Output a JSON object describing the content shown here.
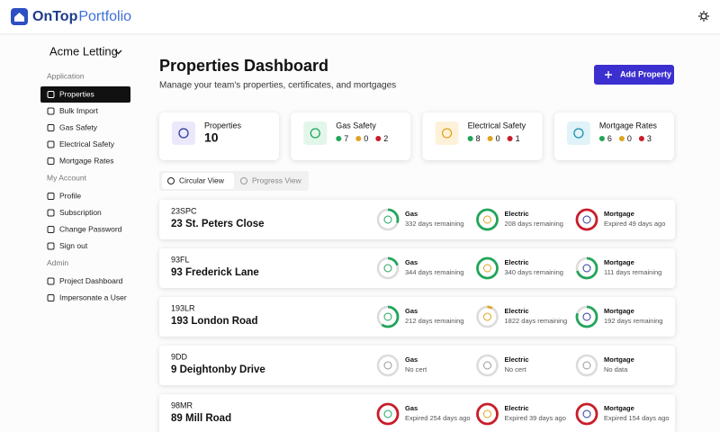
{
  "header": {
    "brand": "OnTop",
    "brand_suffix": "Portfolio"
  },
  "sidebar": {
    "org": "Acme Letting",
    "sections": [
      {
        "title": "Application",
        "items": [
          "Properties",
          "Bulk Import",
          "Gas Safety",
          "Electrical Safety",
          "Mortgage Rates"
        ]
      },
      {
        "title": "My Account",
        "items": [
          "Profile",
          "Subscription",
          "Change Password",
          "Sign out"
        ]
      },
      {
        "title": "Admin",
        "items": [
          "Project Dashboard",
          "Impersonate a User"
        ]
      }
    ]
  },
  "page": {
    "title": "Properties Dashboard",
    "subtitle": "Manage your team's properties, certificates, and mortgages",
    "add_button": "Add Property"
  },
  "stats": [
    {
      "label": "Properties",
      "value": 10
    },
    {
      "label": "Gas Safety",
      "counts": [
        7,
        0,
        2
      ]
    },
    {
      "label": "Electrical Safety",
      "counts": [
        8,
        0,
        1
      ]
    },
    {
      "label": "Mortgage Rates",
      "counts": [
        6,
        0,
        3
      ]
    }
  ],
  "tabs": [
    "Circular View",
    "Progress View"
  ],
  "properties": [
    {
      "code": "23SPC",
      "name": "23 St. Peters Close",
      "certs": [
        {
          "label": "Gas",
          "status": "332 days remaining",
          "progress": 30,
          "color": "#22a55a"
        },
        {
          "label": "Electric",
          "status": "208 days remaining",
          "progress": 100,
          "color": "#22a55a"
        },
        {
          "label": "Mortgage",
          "status": "Expired 49 days ago",
          "progress": 100,
          "color": "#c81e2a"
        }
      ]
    },
    {
      "code": "93FL",
      "name": "93 Frederick Lane",
      "certs": [
        {
          "label": "Gas",
          "status": "344 days remaining",
          "progress": 20,
          "color": "#22a55a"
        },
        {
          "label": "Electric",
          "status": "340 days remaining",
          "progress": 100,
          "color": "#22a55a"
        },
        {
          "label": "Mortgage",
          "status": "111 days remaining",
          "progress": 70,
          "color": "#22a55a"
        }
      ]
    },
    {
      "code": "193LR",
      "name": "193 London Road",
      "certs": [
        {
          "label": "Gas",
          "status": "212 days remaining",
          "progress": 60,
          "color": "#22a55a"
        },
        {
          "label": "Electric",
          "status": "1822 days remaining",
          "progress": 8,
          "color": "#e0a320"
        },
        {
          "label": "Mortgage",
          "status": "192 days remaining",
          "progress": 80,
          "color": "#22a55a"
        }
      ]
    },
    {
      "code": "9DD",
      "name": "9 Deightonby Drive",
      "certs": [
        {
          "label": "Gas",
          "status": "No cert",
          "progress": 0,
          "color": "#cccccc"
        },
        {
          "label": "Electric",
          "status": "No cert",
          "progress": 0,
          "color": "#cccccc"
        },
        {
          "label": "Mortgage",
          "status": "No data",
          "progress": 0,
          "color": "#cccccc"
        }
      ]
    },
    {
      "code": "98MR",
      "name": "89 Mill Road",
      "certs": [
        {
          "label": "Gas",
          "status": "Expired 254 days ago",
          "progress": 100,
          "color": "#c81e2a"
        },
        {
          "label": "Electric",
          "status": "Expired 39 days ago",
          "progress": 100,
          "color": "#c81e2a"
        },
        {
          "label": "Mortgage",
          "status": "Expired 154 days ago",
          "progress": 100,
          "color": "#c81e2a"
        }
      ]
    }
  ]
}
